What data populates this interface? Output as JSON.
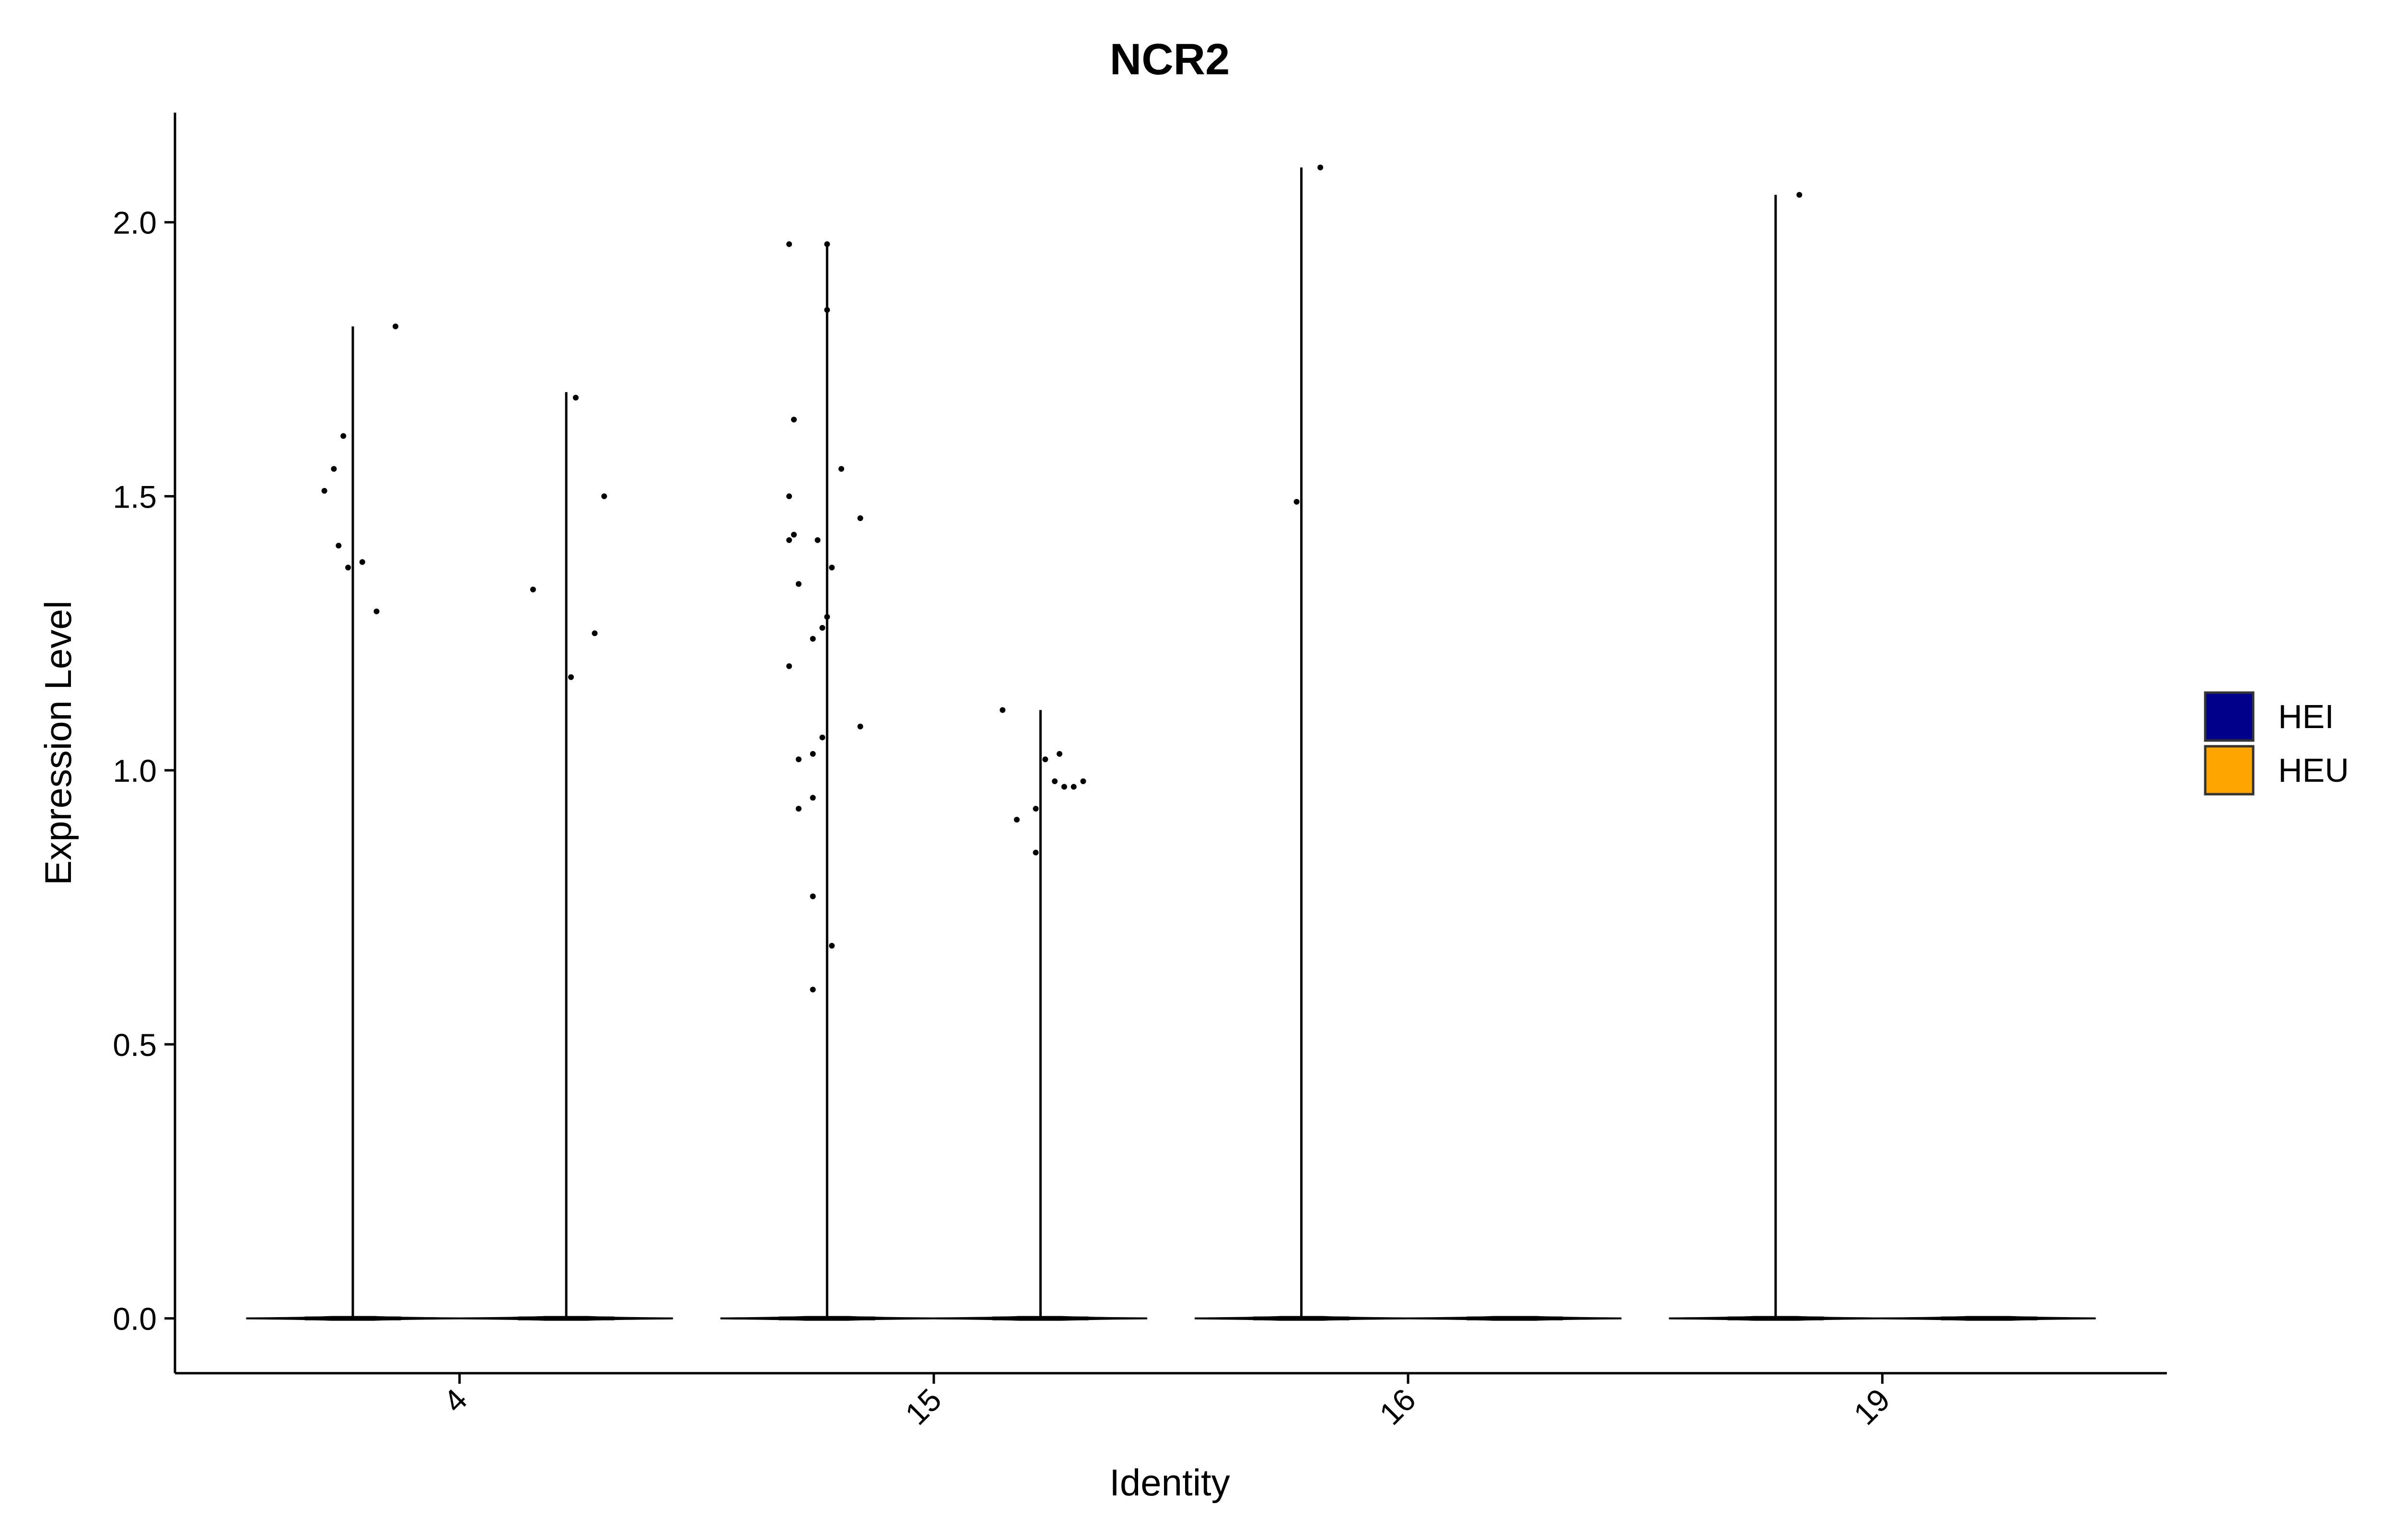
{
  "chart_data": {
    "type": "violin",
    "title": "NCR2",
    "xlabel": "Identity",
    "ylabel": "Expression Level",
    "categories": [
      "4",
      "15",
      "16",
      "19"
    ],
    "ylim": [
      -0.1,
      2.2
    ],
    "yticks": [
      0.0,
      0.5,
      1.0,
      1.5,
      2.0
    ],
    "ytick_labels": [
      "0.0",
      "0.5",
      "1.0",
      "1.5",
      "2.0"
    ],
    "legend": {
      "position": "right",
      "items": [
        {
          "label": "HEI",
          "color": "#00008B"
        },
        {
          "label": "HEU",
          "color": "#FFA500"
        }
      ]
    },
    "series": [
      {
        "name": "HEI",
        "color": "#00008B",
        "groups": [
          {
            "category": "4",
            "max": 1.81,
            "points": [
              [
                -0.06,
                1.51
              ],
              [
                -0.04,
                1.55
              ],
              [
                -0.02,
                1.61
              ],
              [
                -0.03,
                1.41
              ],
              [
                -0.01,
                1.37
              ],
              [
                0.02,
                1.38
              ],
              [
                0.05,
                1.29
              ],
              [
                0.09,
                1.81
              ]
            ]
          },
          {
            "category": "15",
            "max": 1.96,
            "points": [
              [
                -0.08,
                1.96
              ],
              [
                0.0,
                1.96
              ],
              [
                0.0,
                1.84
              ],
              [
                -0.07,
                1.64
              ],
              [
                0.03,
                1.55
              ],
              [
                -0.08,
                1.5
              ],
              [
                0.07,
                1.46
              ],
              [
                -0.08,
                1.42
              ],
              [
                -0.07,
                1.43
              ],
              [
                -0.02,
                1.42
              ],
              [
                0.01,
                1.37
              ],
              [
                -0.06,
                1.34
              ],
              [
                0.0,
                1.28
              ],
              [
                -0.01,
                1.26
              ],
              [
                -0.03,
                1.24
              ],
              [
                -0.08,
                1.19
              ],
              [
                0.07,
                1.08
              ],
              [
                -0.01,
                1.06
              ],
              [
                -0.03,
                1.03
              ],
              [
                -0.06,
                1.02
              ],
              [
                -0.03,
                0.95
              ],
              [
                -0.06,
                0.93
              ],
              [
                -0.03,
                0.77
              ],
              [
                0.01,
                0.68
              ],
              [
                -0.03,
                0.6
              ]
            ]
          },
          {
            "category": "16",
            "max": 2.1,
            "points": [
              [
                0.04,
                2.1
              ],
              [
                -0.01,
                1.49
              ]
            ]
          },
          {
            "category": "19",
            "max": 2.05,
            "points": [
              [
                0.05,
                2.05
              ]
            ]
          }
        ]
      },
      {
        "name": "HEU",
        "color": "#FFA500",
        "groups": [
          {
            "category": "4",
            "max": 1.69,
            "points": [
              [
                0.02,
                1.68
              ],
              [
                0.08,
                1.5
              ],
              [
                -0.07,
                1.33
              ],
              [
                0.06,
                1.25
              ],
              [
                0.01,
                1.17
              ]
            ]
          },
          {
            "category": "15",
            "max": 1.11,
            "points": [
              [
                -0.08,
                1.11
              ],
              [
                0.04,
                1.03
              ],
              [
                0.01,
                1.02
              ],
              [
                0.03,
                0.98
              ],
              [
                0.05,
                0.97
              ],
              [
                0.07,
                0.97
              ],
              [
                0.09,
                0.98
              ],
              [
                -0.01,
                0.93
              ],
              [
                -0.05,
                0.91
              ],
              [
                -0.01,
                0.85
              ]
            ]
          },
          {
            "category": "16",
            "max": 0.0,
            "points": []
          },
          {
            "category": "19",
            "max": 0.0,
            "points": []
          }
        ]
      }
    ]
  }
}
